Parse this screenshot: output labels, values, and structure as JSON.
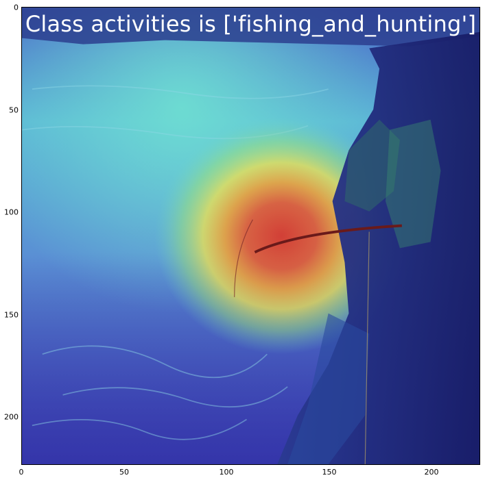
{
  "figure": {
    "title": "Class activities is ['fishing_and_hunting']",
    "xaxis": {
      "ticks": [
        "0",
        "50",
        "100",
        "150",
        "200"
      ],
      "values": [
        0,
        50,
        100,
        150,
        200
      ],
      "range": [
        0,
        224
      ]
    },
    "yaxis": {
      "ticks": [
        "0",
        "50",
        "100",
        "150",
        "200"
      ],
      "values": [
        0,
        50,
        100,
        150,
        200
      ],
      "range": [
        0,
        224
      ]
    },
    "image": {
      "description_icon": "photo-fisherman-on-cliff-with-heatmap-overlay",
      "heatmap_center": [
        125,
        112
      ],
      "colors": {
        "water_dark": "#3a3fb0",
        "water_light": "#5fd0c8",
        "rock_dark": "#1c2375",
        "rock_mid": "#2a3a8a",
        "hot_center": "#e03a2a",
        "ring_orange": "#f08a2a",
        "ring_yellow": "#f3e34a",
        "ring_green": "#a9e06a",
        "rod": "#6a1a1a"
      }
    }
  }
}
